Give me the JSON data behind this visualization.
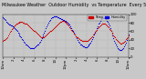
{
  "title_left": "Milwaukee Weather",
  "title_right": "Outdoor Humidity vs Temperature Every 5 Minutes",
  "background_color": "#c8c8c8",
  "plot_bg_color": "#c8c8c8",
  "grid_color": "#aaaaaa",
  "humidity_color": "#0000dd",
  "temp_color": "#cc0000",
  "legend_humidity_color": "#0000dd",
  "legend_temp_color": "#cc0000",
  "legend_humidity_label": "Humidity",
  "legend_temp_label": "Temp",
  "ylim_left": [
    0,
    100
  ],
  "ylim_right": [
    0,
    100
  ],
  "humidity_data": [
    92,
    90,
    88,
    86,
    83,
    80,
    78,
    76,
    75,
    74,
    73,
    72,
    70,
    68,
    66,
    63,
    60,
    57,
    54,
    51,
    48,
    45,
    42,
    39,
    36,
    33,
    30,
    28,
    26,
    24,
    22,
    21,
    20,
    20,
    20,
    21,
    22,
    24,
    26,
    28,
    30,
    33,
    36,
    40,
    44,
    48,
    52,
    57,
    62,
    67,
    72,
    76,
    80,
    84,
    87,
    90,
    92,
    93,
    94,
    95,
    95,
    94,
    93,
    92,
    91,
    90,
    89,
    88,
    87,
    86,
    85,
    84,
    83,
    82,
    80,
    78,
    75,
    72,
    68,
    64,
    60,
    56,
    52,
    48,
    44,
    40,
    36,
    33,
    30,
    28,
    26,
    25,
    24,
    23,
    23,
    23,
    24,
    26,
    28,
    31,
    34,
    38,
    42,
    47,
    52,
    57,
    62,
    67,
    72,
    77,
    81,
    85,
    88,
    90,
    91,
    91,
    90,
    88,
    85,
    82,
    78,
    73,
    68,
    62,
    56,
    50,
    44,
    38,
    33,
    28,
    24,
    21,
    18,
    17,
    16,
    17,
    18,
    21,
    25,
    29,
    34,
    40,
    46,
    53
  ],
  "temp_data": [
    38,
    39,
    40,
    41,
    43,
    46,
    50,
    54,
    58,
    62,
    65,
    68,
    71,
    74,
    76,
    78,
    79,
    80,
    81,
    82,
    82,
    82,
    82,
    81,
    80,
    79,
    78,
    77,
    76,
    74,
    72,
    70,
    68,
    66,
    64,
    62,
    60,
    58,
    56,
    54,
    52,
    50,
    48,
    47,
    46,
    46,
    46,
    47,
    48,
    50,
    52,
    54,
    56,
    58,
    60,
    62,
    64,
    66,
    68,
    70,
    72,
    74,
    76,
    78,
    80,
    82,
    83,
    84,
    84,
    84,
    83,
    82,
    80,
    78,
    76,
    73,
    70,
    67,
    64,
    61,
    58,
    55,
    52,
    49,
    47,
    45,
    43,
    41,
    40,
    39,
    38,
    38,
    37,
    37,
    37,
    37,
    38,
    39,
    40,
    42,
    44,
    46,
    49,
    52,
    55,
    58,
    61,
    64,
    67,
    70,
    72,
    74,
    76,
    77,
    78,
    78,
    77,
    76,
    74,
    72,
    69,
    66,
    63,
    60,
    57,
    54,
    51,
    48,
    45,
    42,
    39,
    37,
    35,
    33,
    32,
    32,
    33,
    34,
    36,
    38,
    41,
    44,
    47,
    51
  ],
  "x_ticks_labels": [
    "12am",
    "2",
    "4",
    "6",
    "8",
    "10",
    "12pm",
    "2",
    "4",
    "6",
    "8",
    "10",
    "12am"
  ],
  "marker_size": 0.8,
  "title_fontsize": 3.5,
  "tick_fontsize": 2.8
}
